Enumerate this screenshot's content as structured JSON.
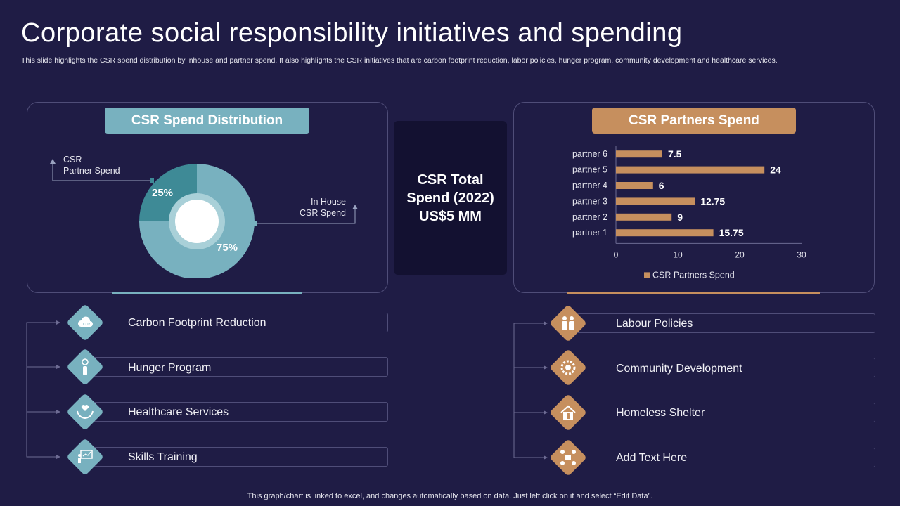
{
  "page": {
    "title": "Corporate social responsibility initiatives and spending",
    "subtitle": "This slide highlights the CSR spend distribution by inhouse and partner spend. It also highlights the CSR initiatives that are carbon footprint reduction, labor policies, hunger program, community development and healthcare services.",
    "footer": "This graph/chart is linked to excel, and changes automatically based on data. Just left click on it and select “Edit Data”."
  },
  "colors": {
    "background": "#1f1c45",
    "teal": "#78b1bf",
    "tan": "#c68f5e",
    "dark_box": "#131131"
  },
  "left_panel": {
    "header": "CSR Spend Distribution",
    "partner_label_line1": "CSR",
    "partner_label_line2": "Partner Spend",
    "inhouse_label_line1": "In House",
    "inhouse_label_line2": "CSR Spend"
  },
  "center": {
    "line1": "CSR Total",
    "line2": "Spend (2022)",
    "line3": "US$5 MM"
  },
  "right_panel": {
    "header": "CSR Partners Spend"
  },
  "chart_data": [
    {
      "type": "pie",
      "title": "CSR Spend Distribution",
      "categories": [
        "CSR Partner Spend",
        "In House CSR Spend"
      ],
      "values": [
        25,
        75
      ],
      "value_labels": [
        "25%",
        "75%"
      ]
    },
    {
      "type": "bar",
      "orientation": "horizontal",
      "title": "CSR Partners Spend",
      "categories": [
        "partner 1",
        "partner 2",
        "partner 3",
        "partner 4",
        "partner 5",
        "partner 6"
      ],
      "values": [
        15.75,
        9,
        12.75,
        6,
        24,
        7.5
      ],
      "value_labels": [
        "15.75",
        "9",
        "12.75",
        "6",
        "24",
        "7.5"
      ],
      "xlim": [
        0,
        30
      ],
      "xticks": [
        "0",
        "10",
        "20",
        "30"
      ],
      "legend": "CSR Partners Spend",
      "legend_position": "bottom"
    }
  ],
  "left_items": [
    {
      "label": "Carbon Footprint Reduction",
      "icon": "cloud-co2-icon"
    },
    {
      "label": "Hunger Program",
      "icon": "hungry-person-icon"
    },
    {
      "label": "Healthcare Services",
      "icon": "hands-heart-icon"
    },
    {
      "label": "Skills Training",
      "icon": "presentation-board-icon"
    }
  ],
  "right_items": [
    {
      "label": "Labour Policies",
      "icon": "workers-icon"
    },
    {
      "label": "Community Development",
      "icon": "community-gear-icon"
    },
    {
      "label": "Homeless Shelter",
      "icon": "house-person-icon"
    },
    {
      "label": "Add Text Here",
      "icon": "network-people-icon"
    }
  ]
}
